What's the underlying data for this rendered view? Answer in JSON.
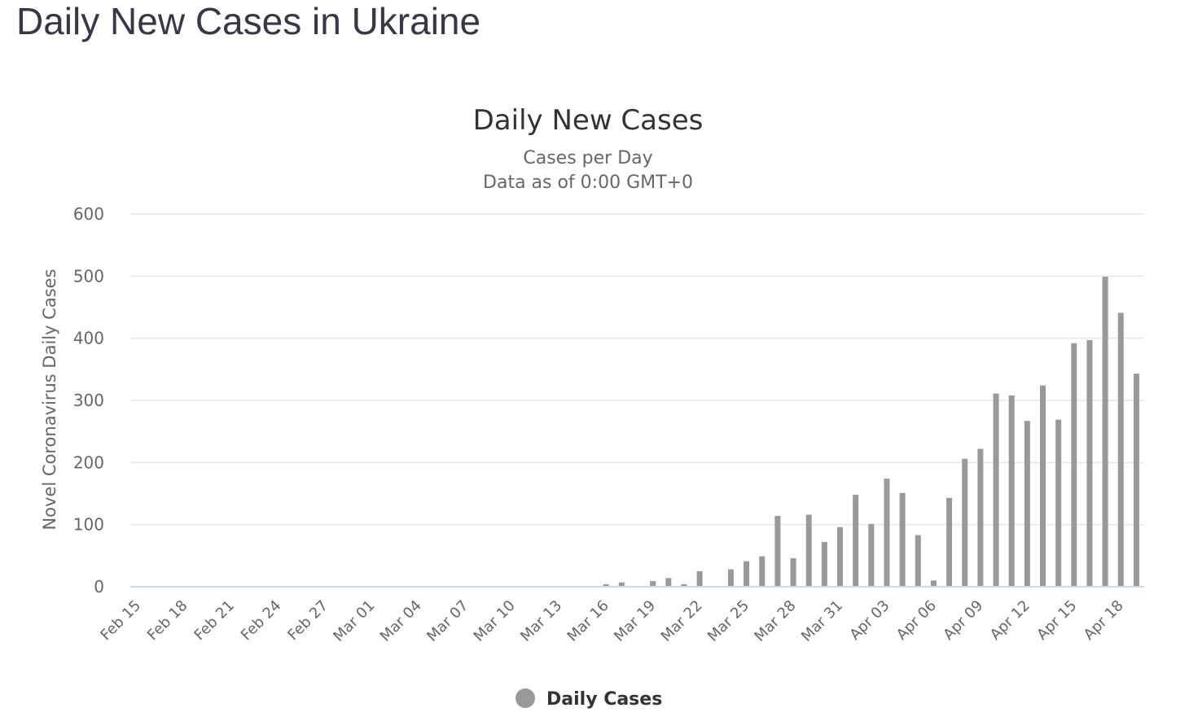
{
  "page": {
    "heading": "Daily New Cases in Ukraine"
  },
  "chart_data": {
    "type": "bar",
    "title": "Daily New Cases",
    "subtitle": "Cases per Day",
    "subtitle2": "Data as of 0:00 GMT+0",
    "xlabel": "",
    "ylabel": "Novel Coronavirus Daily Cases",
    "ylim": [
      0,
      600
    ],
    "yticks": [
      0,
      100,
      200,
      300,
      400,
      500,
      600
    ],
    "grid": true,
    "legend_position": "bottom-center",
    "series": [
      {
        "name": "Daily Cases",
        "color": "#999999",
        "values": [
          0,
          0,
          0,
          0,
          0,
          0,
          0,
          0,
          0,
          0,
          0,
          0,
          0,
          0,
          0,
          0,
          0,
          0,
          0,
          0,
          0,
          0,
          0,
          0,
          0,
          0,
          0,
          0,
          0,
          0,
          4,
          7,
          0,
          9,
          14,
          4,
          25,
          0,
          28,
          41,
          49,
          114,
          46,
          116,
          72,
          96,
          148,
          101,
          174,
          151,
          83,
          10,
          143,
          206,
          222,
          311,
          308,
          267,
          324,
          269,
          392,
          397,
          499,
          441,
          343
        ]
      }
    ],
    "categories": [
      "Feb 15",
      "Feb 16",
      "Feb 17",
      "Feb 18",
      "Feb 19",
      "Feb 20",
      "Feb 21",
      "Feb 22",
      "Feb 23",
      "Feb 24",
      "Feb 25",
      "Feb 26",
      "Feb 27",
      "Feb 28",
      "Feb 29",
      "Mar 01",
      "Mar 02",
      "Mar 03",
      "Mar 04",
      "Mar 05",
      "Mar 06",
      "Mar 07",
      "Mar 08",
      "Mar 09",
      "Mar 10",
      "Mar 11",
      "Mar 12",
      "Mar 13",
      "Mar 14",
      "Mar 15",
      "Mar 16",
      "Mar 17",
      "Mar 18",
      "Mar 19",
      "Mar 20",
      "Mar 21",
      "Mar 22",
      "Mar 23",
      "Mar 24",
      "Mar 25",
      "Mar 26",
      "Mar 27",
      "Mar 28",
      "Mar 29",
      "Mar 30",
      "Mar 31",
      "Apr 01",
      "Apr 02",
      "Apr 03",
      "Apr 04",
      "Apr 05",
      "Apr 06",
      "Apr 07",
      "Apr 08",
      "Apr 09",
      "Apr 10",
      "Apr 11",
      "Apr 12",
      "Apr 13",
      "Apr 14",
      "Apr 15",
      "Apr 16",
      "Apr 17",
      "Apr 18",
      "Apr 19"
    ],
    "x_tick_labels": [
      "Feb 15",
      "Feb 18",
      "Feb 21",
      "Feb 24",
      "Feb 27",
      "Mar 01",
      "Mar 04",
      "Mar 07",
      "Mar 10",
      "Mar 13",
      "Mar 16",
      "Mar 19",
      "Mar 22",
      "Mar 25",
      "Mar 28",
      "Mar 31",
      "Apr 03",
      "Apr 06",
      "Apr 09",
      "Apr 12",
      "Apr 15",
      "Apr 18"
    ],
    "legend": [
      "Daily Cases"
    ]
  }
}
